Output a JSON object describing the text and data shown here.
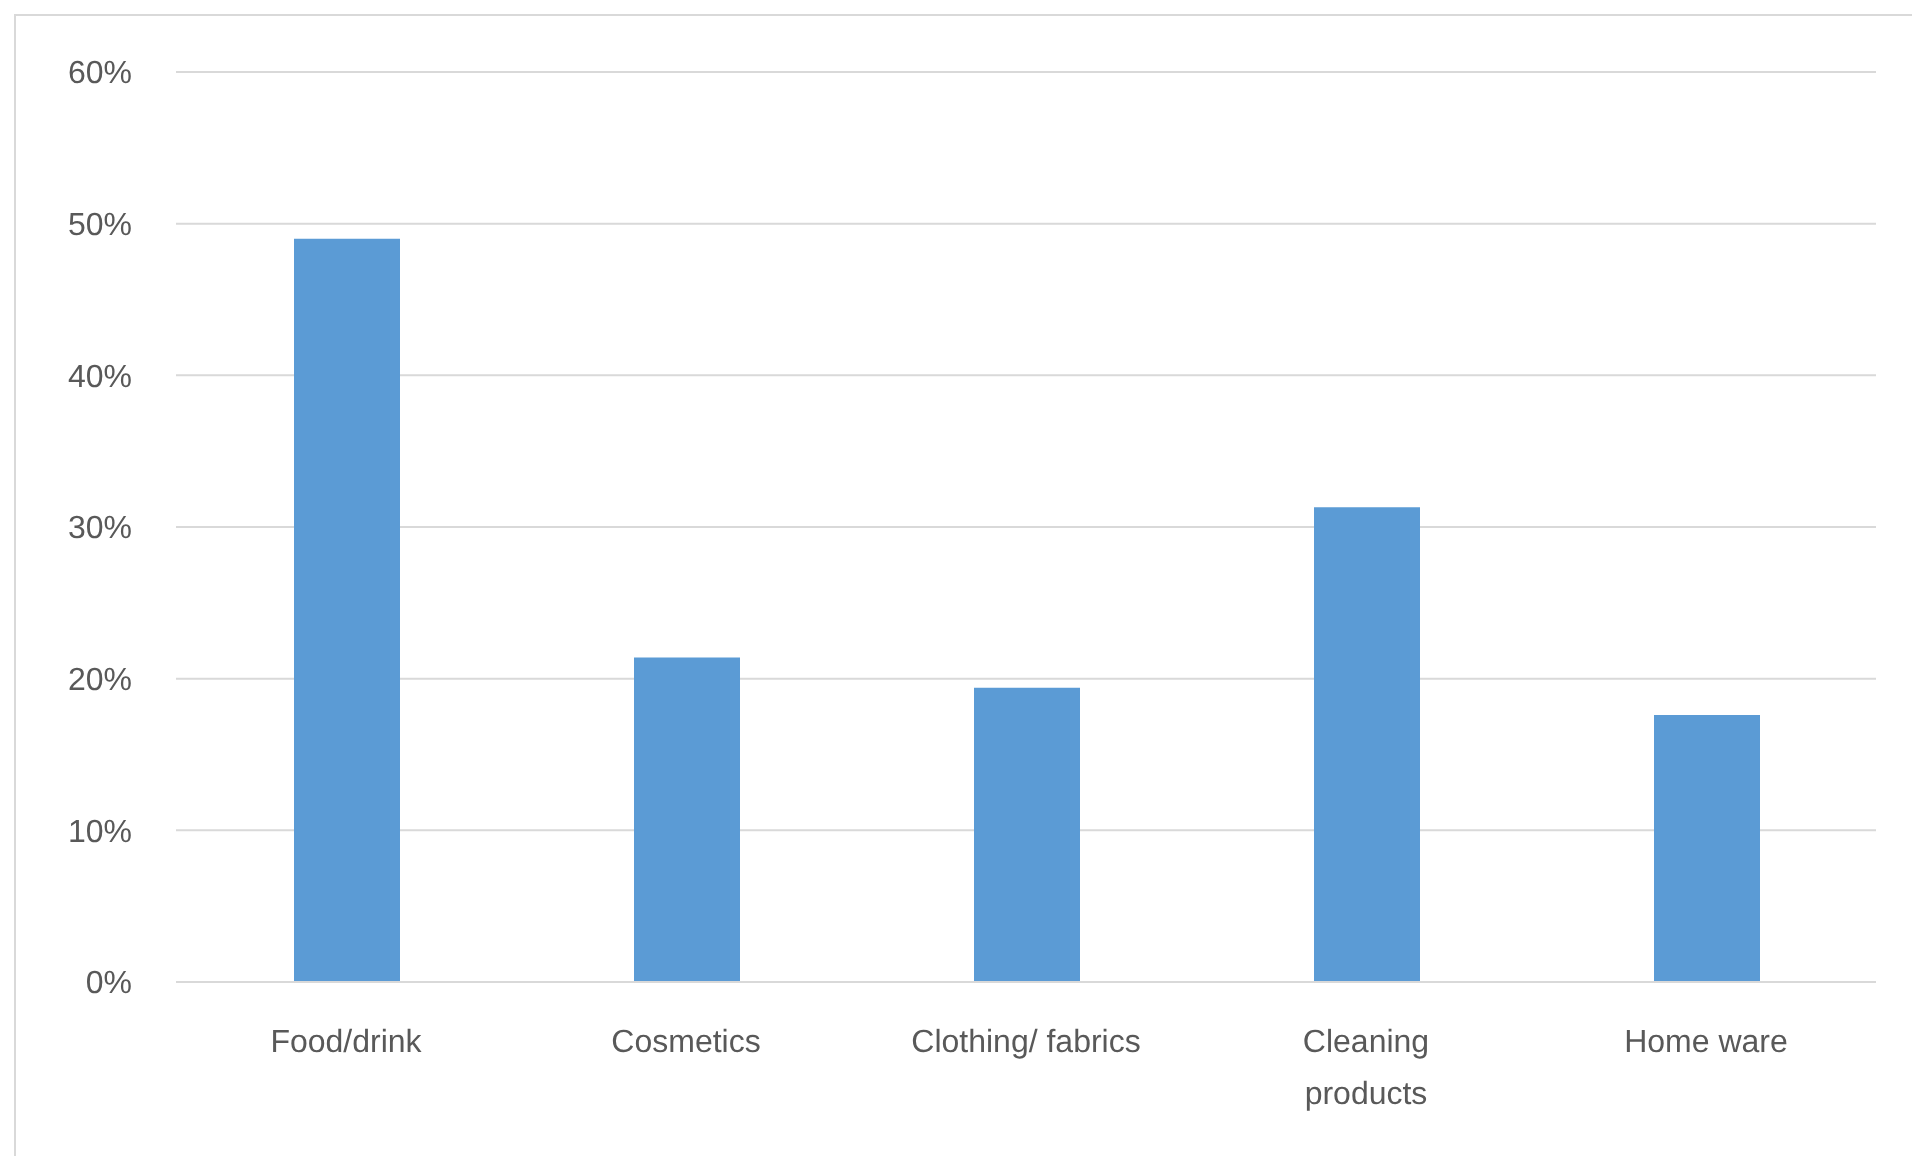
{
  "chart_data": {
    "type": "bar",
    "categories": [
      "Food/drink",
      "Cosmetics",
      "Clothing/ fabrics",
      "Cleaning products",
      "Home ware"
    ],
    "values": [
      49,
      21.4,
      19.4,
      31.3,
      17.6
    ],
    "color": "#5b9bd5",
    "ylim": [
      0,
      60
    ],
    "yticks": [
      {
        "value": 0,
        "label": "0%"
      },
      {
        "value": 10,
        "label": "10%"
      },
      {
        "value": 20,
        "label": "20%"
      },
      {
        "value": 30,
        "label": "30%"
      },
      {
        "value": 40,
        "label": "40%"
      },
      {
        "value": 50,
        "label": "50%"
      },
      {
        "value": 60,
        "label": "60%"
      }
    ],
    "grid": "y"
  }
}
